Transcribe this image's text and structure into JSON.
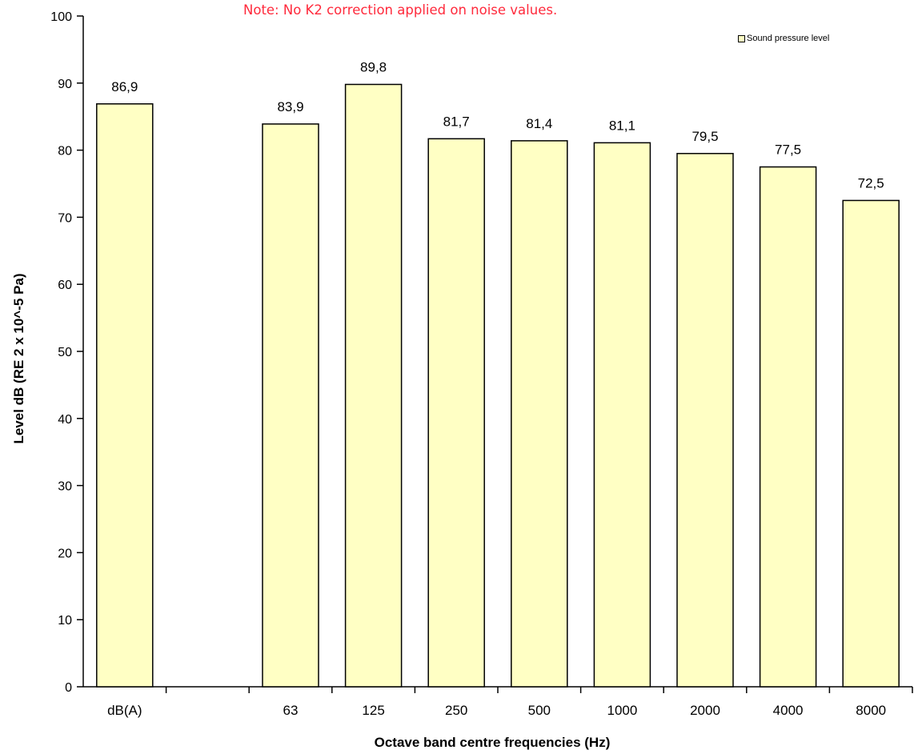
{
  "note": "Note: No K2 correction applied on noise values.",
  "chart_data": {
    "type": "bar",
    "title": "",
    "xlabel": "Octave band centre frequencies (Hz)",
    "ylabel": "Level dB (RE 2 x 10^-5 Pa)",
    "ylim": [
      0,
      100
    ],
    "yticks": [
      0,
      10,
      20,
      30,
      40,
      50,
      60,
      70,
      80,
      90,
      100
    ],
    "grid": false,
    "legend": {
      "position": "top-right",
      "entries": [
        "Sound pressure level"
      ]
    },
    "categories": [
      "dB(A)",
      "",
      "63",
      "125",
      "250",
      "500",
      "1000",
      "2000",
      "4000",
      "8000"
    ],
    "series": [
      {
        "name": "Sound pressure level",
        "values": [
          86.9,
          null,
          83.9,
          89.8,
          81.7,
          81.4,
          81.1,
          79.5,
          77.5,
          72.5
        ],
        "data_labels": [
          "86,9",
          "",
          "83,9",
          "89,8",
          "81,7",
          "81,4",
          "81,1",
          "79,5",
          "77,5",
          "72,5"
        ]
      }
    ],
    "bar_color": "#ffffc4",
    "bar_edge_color": "#000000"
  }
}
